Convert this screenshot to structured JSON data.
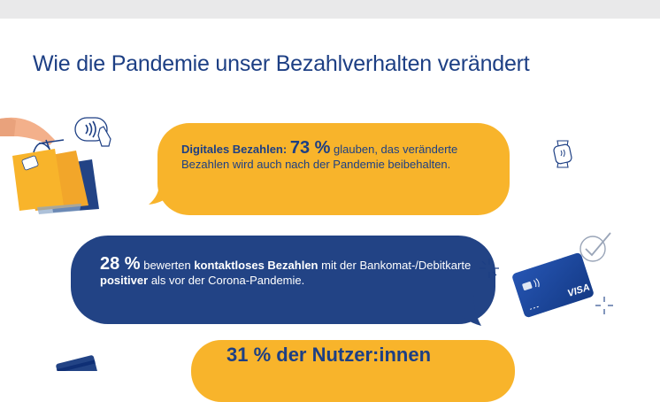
{
  "page": {
    "title": "Wie die Pandemie unser Bezahlverhalten verändert"
  },
  "bubbles": [
    {
      "heading": "Digitales Bezahlen:",
      "stat": "73 %",
      "text": "glauben, das veränderte Bezahlen wird auch nach der Pandemie beibehalten."
    },
    {
      "stat": "28 %",
      "text_1": "bewerten",
      "bold_1": "kontaktloses Bezahlen",
      "text_2": "mit der Bankomat-/Debitkarte",
      "bold_2": "positiver",
      "text_3": "als vor der Corona-Pandemie."
    },
    {
      "text": "31 % der Nutzer:innen"
    }
  ],
  "icons": [
    "shopping-bags-icon",
    "contactless-payment-icon",
    "smartwatch-icon",
    "visa-card-icon",
    "checkmark-icon",
    "sparkle-icon",
    "card-icon"
  ],
  "colors": {
    "navy": "#224385",
    "gold": "#f8b42b",
    "title": "#1d3f84"
  }
}
